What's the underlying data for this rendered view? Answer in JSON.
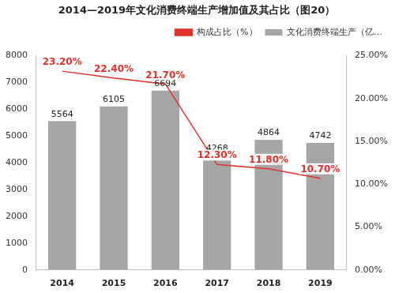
{
  "chart_data": {
    "type": "bar",
    "title": "2014—2019年文化消费终端生产增加值及其占比（图20）",
    "categories": [
      "2014",
      "2015",
      "2016",
      "2017",
      "2018",
      "2019"
    ],
    "series": [
      {
        "name": "文化消费终端生产（亿…",
        "type": "bar",
        "color": "#a6a6a6",
        "values": [
          5564,
          6105,
          6694,
          4268,
          4864,
          4742
        ]
      },
      {
        "name": "构成占比（%）",
        "type": "line",
        "color": "#e0302a",
        "axis": "y2",
        "marker": "none",
        "values": [
          23.2,
          22.4,
          21.7,
          12.3,
          11.8,
          10.7
        ],
        "value_labels": [
          "23.20%",
          "22.40%",
          "21.70%",
          "12.30%",
          "11.80%",
          "10.70%"
        ]
      }
    ],
    "ylim": [
      0,
      8000
    ],
    "yticks": [
      0,
      1000,
      2000,
      3000,
      4000,
      5000,
      6000,
      7000,
      8000
    ],
    "y2lim": [
      0,
      25
    ],
    "y2ticks": [
      {
        "value": 0,
        "label": "0.00%"
      },
      {
        "value": 5,
        "label": "5.00%"
      },
      {
        "value": 10,
        "label": "10.00%"
      },
      {
        "value": 15,
        "label": "15.00%"
      },
      {
        "value": 20,
        "label": "20.00%"
      },
      {
        "value": 25,
        "label": "25.00%"
      }
    ],
    "grid": false,
    "legend": "top",
    "data_labels": true
  }
}
